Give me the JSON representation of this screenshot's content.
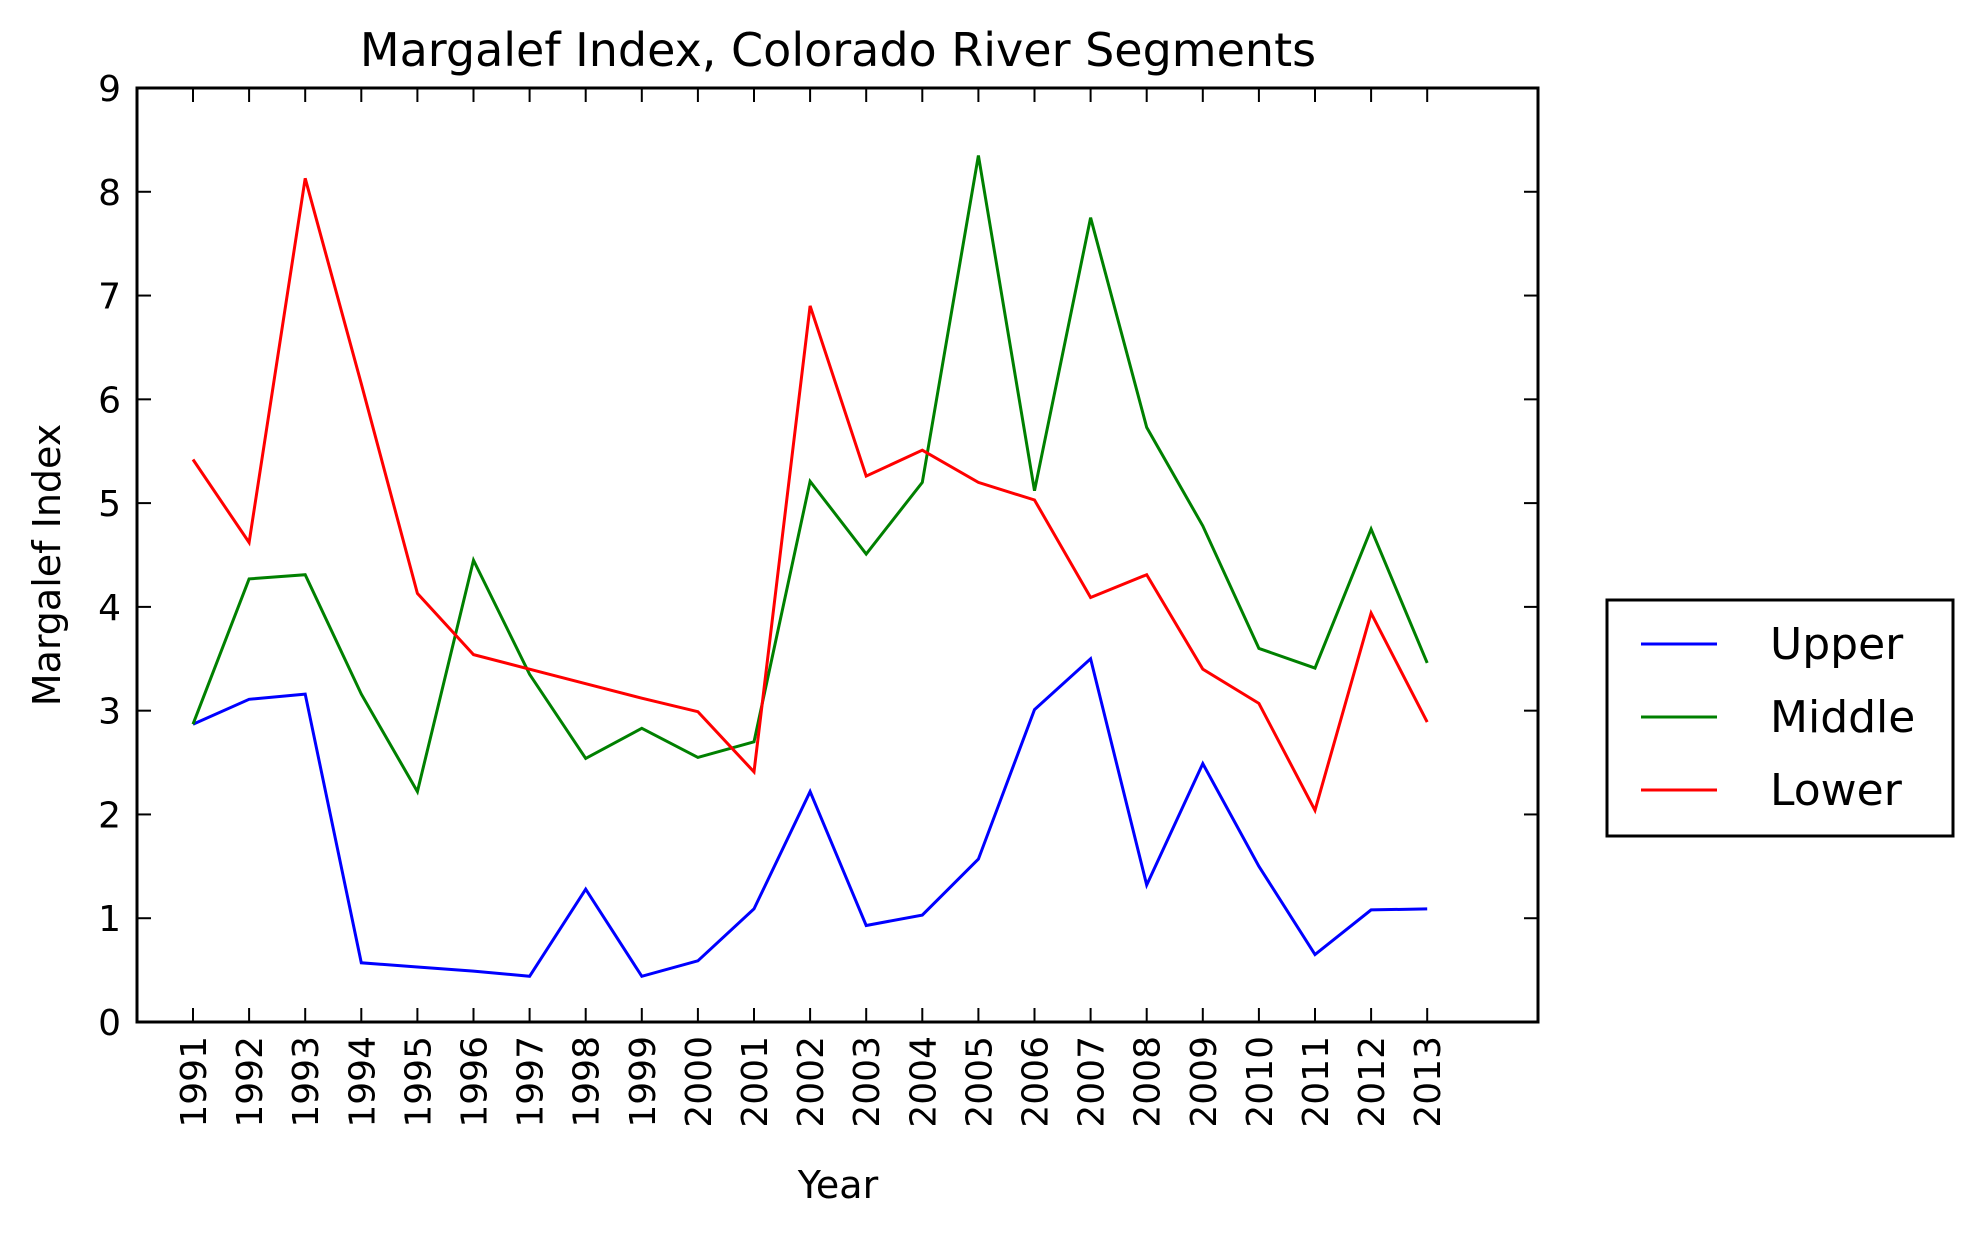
{
  "chart_data": {
    "type": "line",
    "title": "Margalef Index, Colorado River Segments",
    "xlabel": "Year",
    "ylabel": "Margalef Index",
    "ylim": [
      0,
      9
    ],
    "yticks": [
      "0",
      "1",
      "2",
      "3",
      "4",
      "5",
      "6",
      "7",
      "8",
      "9"
    ],
    "grid": false,
    "legend_position": "right",
    "categories": [
      "1991",
      "1992",
      "1993",
      "1994",
      "1995",
      "1996",
      "1997",
      "1998",
      "1999",
      "2000",
      "2001",
      "2002",
      "2003",
      "2004",
      "2005",
      "2006",
      "2007",
      "2008",
      "2009",
      "2010",
      "2011",
      "2012",
      "2013"
    ],
    "series": [
      {
        "name": "Upper",
        "color": "#0000ff",
        "values": [
          2.87,
          3.11,
          3.16,
          0.57,
          0.53,
          0.49,
          0.44,
          1.28,
          0.44,
          0.59,
          1.09,
          2.22,
          0.93,
          1.03,
          1.57,
          3.01,
          3.5,
          1.32,
          2.49,
          1.5,
          0.65,
          1.08,
          1.09
        ]
      },
      {
        "name": "Middle",
        "color": "#008000",
        "values": [
          2.87,
          4.27,
          4.31,
          3.16,
          2.22,
          4.45,
          3.35,
          2.54,
          2.83,
          2.55,
          2.7,
          5.21,
          4.51,
          5.2,
          8.35,
          5.12,
          7.75,
          5.73,
          4.78,
          3.6,
          3.41,
          4.75,
          3.46
        ]
      },
      {
        "name": "Lower",
        "color": "#ff0000",
        "values": [
          5.42,
          4.62,
          8.13,
          6.15,
          4.13,
          3.54,
          3.4,
          3.26,
          3.12,
          2.99,
          2.41,
          6.9,
          5.26,
          5.51,
          5.2,
          5.03,
          4.09,
          4.31,
          3.4,
          3.07,
          2.04,
          3.94,
          2.89
        ]
      }
    ]
  }
}
